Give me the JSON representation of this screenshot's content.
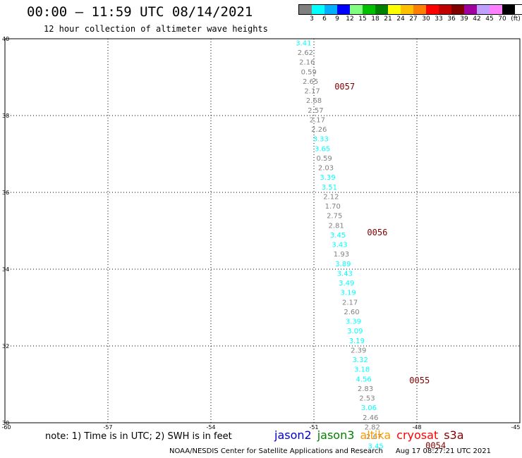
{
  "header": {
    "title": "00:00 – 11:59 UTC 08/14/2021",
    "subtitle": "12 hour collection of altimeter wave heights"
  },
  "color_scale": {
    "unit": "(ft)",
    "labels": [
      "3",
      "6",
      "9",
      "12",
      "15",
      "18",
      "21",
      "24",
      "27",
      "30",
      "33",
      "36",
      "39",
      "42",
      "45",
      "70"
    ],
    "colors": [
      "#808080",
      "#00ffff",
      "#00b0ff",
      "#0000ff",
      "#80ff80",
      "#00c000",
      "#008000",
      "#ffff00",
      "#ffc000",
      "#ff8000",
      "#ff0000",
      "#c00000",
      "#800000",
      "#a000a0",
      "#c0a0ff",
      "#ff80ff",
      "#000000"
    ]
  },
  "map": {
    "lat_labels": [
      "40",
      "38",
      "36",
      "34",
      "32",
      "30"
    ],
    "lon_labels": [
      "-60",
      "-57",
      "-54",
      "-51",
      "-48",
      "-45"
    ]
  },
  "chart_data": {
    "type": "scatter",
    "lat_range": [
      30,
      40
    ],
    "lon_range": [
      -60,
      -45
    ],
    "series": [
      {
        "points": [
          {
            "lon": -51.3,
            "lat": 39.9,
            "swh": "3.41",
            "color": "#00ffff"
          },
          {
            "lon": -51.25,
            "lat": 39.65,
            "swh": "2.62",
            "color": "#808080"
          },
          {
            "lon": -51.2,
            "lat": 39.4,
            "swh": "2.16",
            "color": "#808080"
          },
          {
            "lon": -51.15,
            "lat": 39.15,
            "swh": "0.59",
            "color": "#808080"
          },
          {
            "lon": -51.1,
            "lat": 38.9,
            "swh": "2.65",
            "color": "#808080"
          },
          {
            "lon": -51.05,
            "lat": 38.65,
            "swh": "2.17",
            "color": "#808080"
          },
          {
            "lon": -51.0,
            "lat": 38.4,
            "swh": "2.68",
            "color": "#808080"
          },
          {
            "lon": -50.95,
            "lat": 38.15,
            "swh": "2.57",
            "color": "#808080"
          },
          {
            "lon": -50.9,
            "lat": 37.9,
            "swh": "2.17",
            "color": "#808080"
          },
          {
            "lon": -50.85,
            "lat": 37.65,
            "swh": "2.26",
            "color": "#808080"
          },
          {
            "lon": -50.8,
            "lat": 37.4,
            "swh": "3.33",
            "color": "#00ffff"
          },
          {
            "lon": -50.75,
            "lat": 37.15,
            "swh": "3.65",
            "color": "#00ffff"
          },
          {
            "lon": -50.7,
            "lat": 36.9,
            "swh": "0.59",
            "color": "#808080"
          },
          {
            "lon": -50.65,
            "lat": 36.65,
            "swh": "2.03",
            "color": "#808080"
          },
          {
            "lon": -50.6,
            "lat": 36.4,
            "swh": "3.39",
            "color": "#00ffff"
          },
          {
            "lon": -50.55,
            "lat": 36.15,
            "swh": "3.51",
            "color": "#00ffff"
          },
          {
            "lon": -50.5,
            "lat": 35.9,
            "swh": "2.12",
            "color": "#808080"
          },
          {
            "lon": -50.45,
            "lat": 35.65,
            "swh": "1.70",
            "color": "#808080"
          },
          {
            "lon": -50.4,
            "lat": 35.4,
            "swh": "2.75",
            "color": "#808080"
          },
          {
            "lon": -50.35,
            "lat": 35.15,
            "swh": "2.81",
            "color": "#808080"
          },
          {
            "lon": -50.3,
            "lat": 34.9,
            "swh": "3.45",
            "color": "#00ffff"
          },
          {
            "lon": -50.25,
            "lat": 34.65,
            "swh": "3.43",
            "color": "#00ffff"
          },
          {
            "lon": -50.2,
            "lat": 34.4,
            "swh": "1.93",
            "color": "#808080"
          },
          {
            "lon": -50.15,
            "lat": 34.15,
            "swh": "3.89",
            "color": "#00ffff"
          },
          {
            "lon": -50.1,
            "lat": 33.9,
            "swh": "3.43",
            "color": "#00ffff"
          },
          {
            "lon": -50.05,
            "lat": 33.65,
            "swh": "3.49",
            "color": "#00ffff"
          },
          {
            "lon": -50.0,
            "lat": 33.4,
            "swh": "3.19",
            "color": "#00ffff"
          },
          {
            "lon": -49.95,
            "lat": 33.15,
            "swh": "2.17",
            "color": "#808080"
          },
          {
            "lon": -49.9,
            "lat": 32.9,
            "swh": "2.60",
            "color": "#808080"
          },
          {
            "lon": -49.85,
            "lat": 32.65,
            "swh": "3.39",
            "color": "#00ffff"
          },
          {
            "lon": -49.8,
            "lat": 32.4,
            "swh": "3.09",
            "color": "#00ffff"
          },
          {
            "lon": -49.75,
            "lat": 32.15,
            "swh": "3.19",
            "color": "#00ffff"
          },
          {
            "lon": -49.7,
            "lat": 31.9,
            "swh": "2.39",
            "color": "#808080"
          },
          {
            "lon": -49.65,
            "lat": 31.65,
            "swh": "3.32",
            "color": "#00ffff"
          },
          {
            "lon": -49.6,
            "lat": 31.4,
            "swh": "3.18",
            "color": "#00ffff"
          },
          {
            "lon": -49.55,
            "lat": 31.15,
            "swh": "4.56",
            "color": "#00ffff"
          },
          {
            "lon": -49.5,
            "lat": 30.9,
            "swh": "2.83",
            "color": "#808080"
          },
          {
            "lon": -49.45,
            "lat": 30.65,
            "swh": "2.53",
            "color": "#808080"
          },
          {
            "lon": -49.4,
            "lat": 30.4,
            "swh": "3.06",
            "color": "#00ffff"
          },
          {
            "lon": -49.35,
            "lat": 30.15,
            "swh": "2.46",
            "color": "#808080"
          },
          {
            "lon": -49.3,
            "lat": 29.9,
            "swh": "2.82",
            "color": "#808080"
          },
          {
            "lon": -49.25,
            "lat": 29.65,
            "swh": "2.67",
            "color": "#808080"
          },
          {
            "lon": -49.2,
            "lat": 29.4,
            "swh": "3.45",
            "color": "#00ffff"
          }
        ]
      }
    ],
    "pass_labels": [
      {
        "label": "0057",
        "lon": -50.4,
        "lat": 38.75
      },
      {
        "label": "0056",
        "lon": -49.45,
        "lat": 34.95
      },
      {
        "label": "0055",
        "lon": -48.22,
        "lat": 31.1
      },
      {
        "label": "0054",
        "lon": -47.75,
        "lat": 29.4
      }
    ]
  },
  "footer": {
    "note": "note: 1) Time is in UTC; 2) SWH is in feet",
    "satellites": [
      {
        "name": "jason2",
        "color": "#0000cc"
      },
      {
        "name": "jason3",
        "color": "#008000"
      },
      {
        "name": "altika",
        "color": "#ff9900"
      },
      {
        "name": "cryosat",
        "color": "#ff0000"
      },
      {
        "name": "s3a",
        "color": "#800000"
      }
    ],
    "credit": "NOAA/NESDIS Center for Satellite Applications and Research",
    "timestamp": "Aug 17 08:27:21 UTC 2021"
  }
}
